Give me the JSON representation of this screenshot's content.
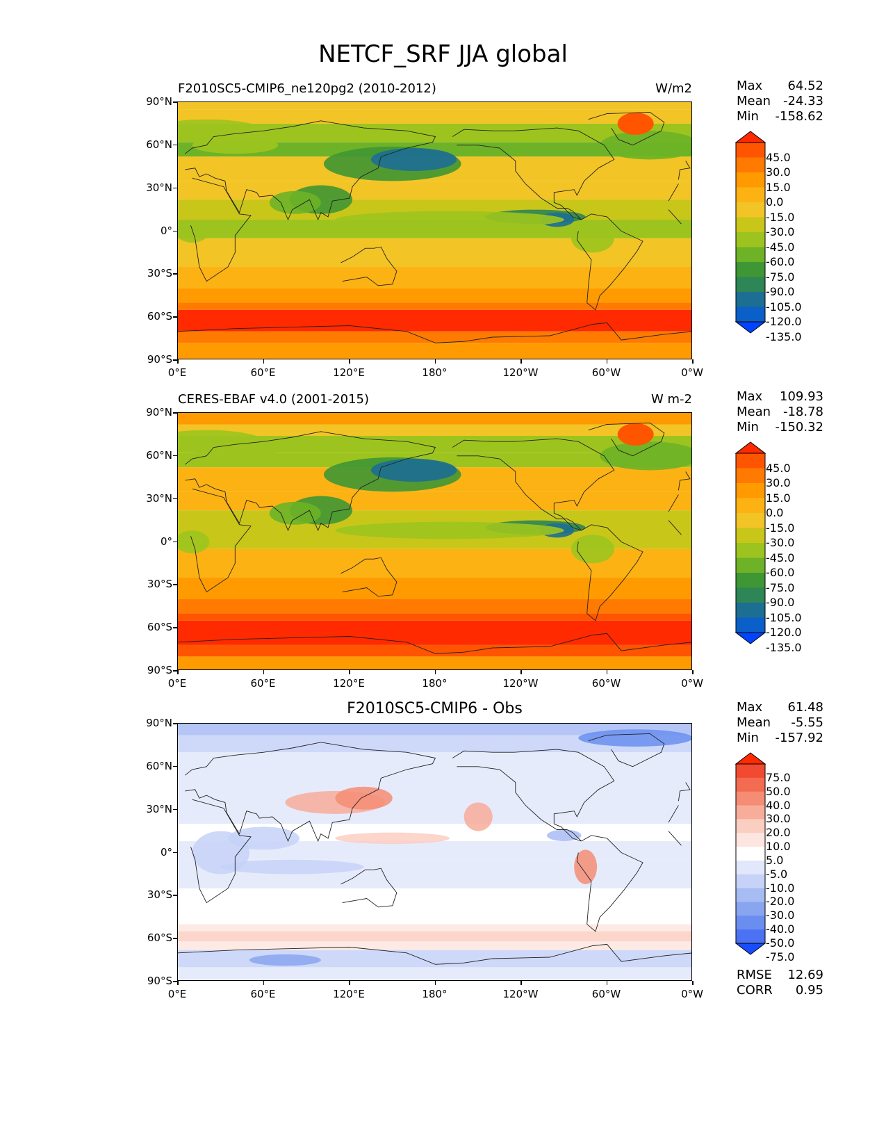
{
  "title": "NETCF_SRF JJA global",
  "lat_labels": [
    "90°N",
    "60°N",
    "30°N",
    "0°",
    "30°S",
    "60°S",
    "90°S"
  ],
  "lon_labels": [
    "0°E",
    "60°E",
    "120°E",
    "180°",
    "120°W",
    "60°W",
    "0°W"
  ],
  "panels": [
    {
      "title_left": "F2010SC5-CMIP6_ne120pg2 (2010-2012)",
      "title_right": "W/m2",
      "title_center": "",
      "stats": [
        {
          "label": "Max",
          "value": "64.52"
        },
        {
          "label": "Mean",
          "value": "-24.33"
        },
        {
          "label": "Min",
          "value": "-158.62"
        }
      ],
      "colorbar": {
        "labels": [
          "45.0",
          "30.0",
          "15.0",
          "0.0",
          "-15.0",
          "-30.0",
          "-45.0",
          "-60.0",
          "-75.0",
          "-90.0",
          "-105.0",
          "-120.0",
          "-135.0"
        ],
        "colors": [
          "#ff2a00",
          "#ff5500",
          "#ff7a00",
          "#ff9a00",
          "#fdb214",
          "#f2c425",
          "#c9c61a",
          "#9dc41e",
          "#6db227",
          "#3f9634",
          "#2e8555",
          "#1c6e93",
          "#0a5fc8",
          "#0044ff"
        ]
      }
    },
    {
      "title_left": "CERES-EBAF v4.0 (2001-2015)",
      "title_right": "W m-2",
      "title_center": "",
      "stats": [
        {
          "label": "Max",
          "value": "109.93"
        },
        {
          "label": "Mean",
          "value": "-18.78"
        },
        {
          "label": "Min",
          "value": "-150.32"
        }
      ],
      "colorbar": {
        "labels": [
          "45.0",
          "30.0",
          "15.0",
          "0.0",
          "-15.0",
          "-30.0",
          "-45.0",
          "-60.0",
          "-75.0",
          "-90.0",
          "-105.0",
          "-120.0",
          "-135.0"
        ],
        "colors": [
          "#ff2a00",
          "#ff5500",
          "#ff7a00",
          "#ff9a00",
          "#fdb214",
          "#f2c425",
          "#c9c61a",
          "#9dc41e",
          "#6db227",
          "#3f9634",
          "#2e8555",
          "#1c6e93",
          "#0a5fc8",
          "#0044ff"
        ]
      }
    },
    {
      "title_left": "",
      "title_right": "",
      "title_center": "F2010SC5-CMIP6 - Obs",
      "stats": [
        {
          "label": "Max",
          "value": "61.48"
        },
        {
          "label": "Mean",
          "value": "-5.55"
        },
        {
          "label": "Min",
          "value": "-157.92"
        }
      ],
      "colorbar": {
        "labels": [
          "75.0",
          "50.0",
          "40.0",
          "30.0",
          "20.0",
          "10.0",
          "5.0",
          "-5.0",
          "-10.0",
          "-20.0",
          "-30.0",
          "-40.0",
          "-50.0",
          "-75.0"
        ],
        "colors": [
          "#ff2a00",
          "#f24a30",
          "#f36b50",
          "#f48d74",
          "#f7ad9a",
          "#fbcec2",
          "#fde6e0",
          "#ffffff",
          "#e2e8fb",
          "#c6d2f8",
          "#a8bcf4",
          "#89a5f0",
          "#6a8ef0",
          "#4a72f2",
          "#1a4cff"
        ]
      },
      "footer_stats": [
        {
          "label": "RMSE",
          "value": "12.69"
        },
        {
          "label": "CORR",
          "value": "0.95"
        }
      ]
    }
  ]
}
